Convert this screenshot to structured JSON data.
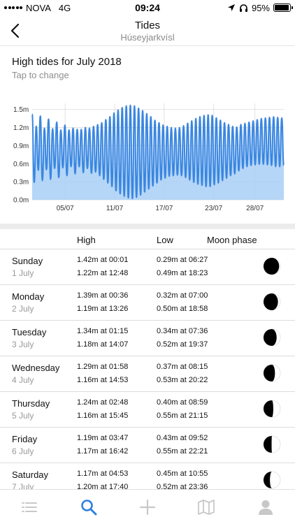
{
  "status_bar": {
    "carrier": "NOVA",
    "network": "4G",
    "time": "09:24",
    "battery": "95%",
    "battery_level": 0.95,
    "icons": [
      "signal-dots-icon",
      "location-arrow-icon",
      "headphones-icon",
      "battery-icon"
    ]
  },
  "nav": {
    "title": "Tides",
    "subtitle": "Húseyjarkvísl",
    "back_icon": "chevron-left-icon"
  },
  "chart_header": {
    "title": "High tides for July 2018",
    "subtitle": "Tap to change"
  },
  "chart_data": {
    "type": "area",
    "title": "High tides for July 2018",
    "xlabel": "",
    "ylabel": "",
    "ylim": [
      0,
      1.6
    ],
    "yticks": [
      {
        "value": 0,
        "label": "0.0m"
      },
      {
        "value": 0.3,
        "label": "0.3m"
      },
      {
        "value": 0.6,
        "label": "0.6m"
      },
      {
        "value": 0.9,
        "label": "0.9m"
      },
      {
        "value": 1.2,
        "label": "1.2m"
      },
      {
        "value": 1.5,
        "label": "1.5m"
      }
    ],
    "xlim": [
      1,
      31.5
    ],
    "xticks": [
      {
        "value": 5,
        "label": "05/07"
      },
      {
        "value": 11,
        "label": "11/07"
      },
      {
        "value": 17,
        "label": "17/07"
      },
      {
        "value": 23,
        "label": "23/07"
      },
      {
        "value": 28,
        "label": "28/07"
      }
    ],
    "grid": true,
    "legend": "none",
    "color_line": "#3a86e0",
    "color_fill": "#a9cff6",
    "series": [
      {
        "values": [
          1.42,
          0.29,
          1.22,
          0.49,
          1.39,
          0.32,
          1.19,
          0.5,
          1.34,
          0.34,
          1.18,
          0.52,
          1.29,
          0.37,
          1.16,
          0.53,
          1.24,
          0.4,
          1.16,
          0.55,
          1.19,
          0.43,
          1.17,
          0.55,
          1.17,
          0.45,
          1.2,
          0.52,
          1.19,
          0.44,
          1.22,
          0.46,
          1.25,
          0.4,
          1.28,
          0.34,
          1.33,
          0.28,
          1.38,
          0.22,
          1.44,
          0.15,
          1.49,
          0.1,
          1.53,
          0.06,
          1.56,
          0.03,
          1.57,
          0.02,
          1.56,
          0.04,
          1.52,
          0.08,
          1.48,
          0.13,
          1.43,
          0.18,
          1.38,
          0.23,
          1.32,
          0.28,
          1.28,
          0.33,
          1.24,
          0.36,
          1.22,
          0.39,
          1.2,
          0.4,
          1.19,
          0.41,
          1.2,
          0.4,
          1.23,
          0.37,
          1.27,
          0.33,
          1.31,
          0.29,
          1.35,
          0.26,
          1.38,
          0.24,
          1.4,
          0.22,
          1.41,
          0.22,
          1.4,
          0.25,
          1.36,
          0.28,
          1.32,
          0.32,
          1.28,
          0.36,
          1.25,
          0.4,
          1.22,
          0.43,
          1.21,
          0.48,
          1.25,
          0.52,
          1.27,
          0.55,
          1.29,
          0.57,
          1.31,
          0.58,
          1.33,
          0.59,
          1.35,
          0.59,
          1.36,
          0.58,
          1.37,
          0.57,
          1.38,
          0.55,
          1.37,
          0.55,
          1.36,
          0.57
        ]
      }
    ]
  },
  "table": {
    "headers": {
      "high": "High",
      "low": "Low",
      "moon": "Moon phase"
    },
    "rows": [
      {
        "day": "Sunday",
        "date": "1 July",
        "high1": "1.42m at 00:01",
        "high2": "1.22m at 12:48",
        "low1": "0.29m at 06:27",
        "low2": "0.49m at 18:23",
        "moon_illum": 0.93
      },
      {
        "day": "Monday",
        "date": "2 July",
        "high1": "1.39m at 00:36",
        "high2": "1.19m at 13:26",
        "low1": "0.32m at 07:00",
        "low2": "0.50m at 18:58",
        "moon_illum": 0.86
      },
      {
        "day": "Tuesday",
        "date": "3 July",
        "high1": "1.34m at 01:15",
        "high2": "1.18m at 14:07",
        "low1": "0.34m at 07:36",
        "low2": "0.52m at 19:37",
        "moon_illum": 0.78
      },
      {
        "day": "Wednesday",
        "date": "4 July",
        "high1": "1.29m at 01:58",
        "high2": "1.16m at 14:53",
        "low1": "0.37m at 08:15",
        "low2": "0.53m at 20:22",
        "moon_illum": 0.68
      },
      {
        "day": "Thursday",
        "date": "5 July",
        "high1": "1.24m at 02:48",
        "high2": "1.16m at 15:45",
        "low1": "0.40m at 08:59",
        "low2": "0.55m at 21:15",
        "moon_illum": 0.58
      },
      {
        "day": "Friday",
        "date": "6 July",
        "high1": "1.19m at 03:47",
        "high2": "1.17m at 16:42",
        "low1": "0.43m at 09:52",
        "low2": "0.55m at 22:21",
        "moon_illum": 0.48
      },
      {
        "day": "Saturday",
        "date": "7 July",
        "high1": "1.17m at 04:53",
        "high2": "1.20m at 17:40",
        "low1": "0.45m at 10:55",
        "low2": "0.52m at 23:36",
        "moon_illum": 0.38
      }
    ]
  },
  "tab_bar": {
    "tabs": [
      {
        "icon": "list-icon",
        "active": false
      },
      {
        "icon": "search-icon",
        "active": true
      },
      {
        "icon": "plus-icon",
        "active": false
      },
      {
        "icon": "map-icon",
        "active": false
      },
      {
        "icon": "profile-icon",
        "active": false
      }
    ],
    "active_color": "#2f80e0",
    "inactive_color": "#c8c8c8"
  }
}
